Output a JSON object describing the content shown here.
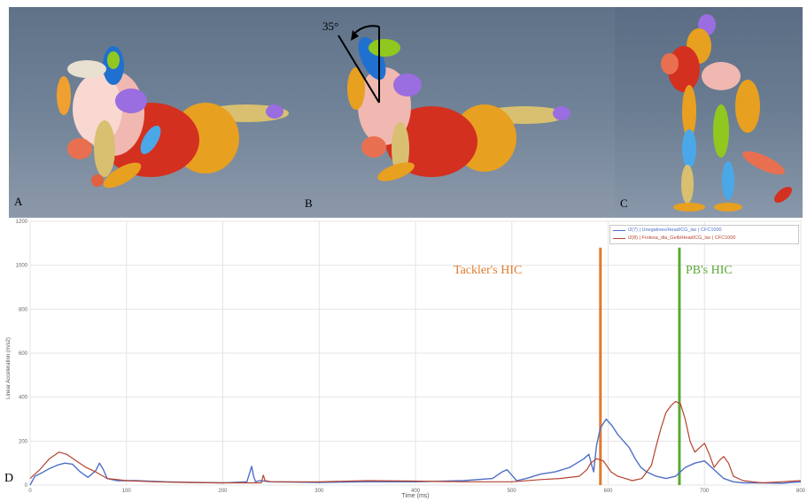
{
  "panels": {
    "a_label": "A",
    "b_label": "B",
    "c_label": "C",
    "angle_label": "35°"
  },
  "chart_data": {
    "type": "line",
    "panel_label": "D",
    "xlabel": "Time (ms)",
    "ylabel": "Linear Acceleration (m/s2)",
    "xlim": [
      0,
      800
    ],
    "ylim": [
      0,
      1200
    ],
    "x_ticks": [
      "0",
      "100",
      "200",
      "300",
      "400",
      "500",
      "600",
      "700",
      "800"
    ],
    "y_ticks": [
      "0",
      "200",
      "400",
      "600",
      "800",
      "1000",
      "1200"
    ],
    "grid": true,
    "legend_position": "top-right",
    "series": [
      {
        "name": "i2(7) | Unegatives/Head/CG_lac | CFC1000",
        "color": "#4f6fc8",
        "x": [
          0,
          5,
          12,
          20,
          28,
          36,
          44,
          52,
          60,
          68,
          72,
          76,
          80,
          90,
          110,
          140,
          170,
          200,
          225,
          230,
          232,
          234,
          238,
          250,
          300,
          350,
          400,
          450,
          480,
          490,
          495,
          500,
          505,
          515,
          530,
          545,
          560,
          575,
          580,
          583,
          585,
          588,
          592,
          598,
          604,
          610,
          616,
          622,
          628,
          634,
          640,
          650,
          660,
          670,
          680,
          690,
          700,
          710,
          720,
          730,
          740,
          760,
          780,
          800
        ],
        "y": [
          0,
          40,
          55,
          75,
          90,
          100,
          95,
          60,
          35,
          65,
          100,
          70,
          30,
          20,
          20,
          15,
          12,
          10,
          15,
          85,
          40,
          15,
          20,
          15,
          12,
          15,
          15,
          20,
          30,
          60,
          70,
          45,
          20,
          30,
          50,
          60,
          80,
          120,
          140,
          90,
          60,
          180,
          260,
          300,
          270,
          230,
          200,
          170,
          120,
          80,
          60,
          40,
          30,
          40,
          80,
          100,
          110,
          70,
          30,
          15,
          10,
          10,
          8,
          15
        ]
      },
      {
        "name": "i2(8) | Frolexa_dia_Gelb/Head/CG_lac | CFC1000",
        "color": "#b5432e",
        "x": [
          0,
          10,
          20,
          30,
          38,
          48,
          58,
          68,
          80,
          100,
          130,
          160,
          200,
          240,
          242,
          244,
          250,
          300,
          350,
          400,
          450,
          500,
          530,
          550,
          570,
          578,
          582,
          588,
          595,
          603,
          610,
          618,
          625,
          635,
          645,
          650,
          655,
          660,
          665,
          670,
          675,
          680,
          685,
          690,
          695,
          700,
          705,
          710,
          715,
          720,
          725,
          730,
          740,
          750,
          760,
          780,
          800
        ],
        "y": [
          30,
          70,
          120,
          150,
          140,
          110,
          80,
          60,
          30,
          20,
          15,
          12,
          10,
          10,
          45,
          20,
          15,
          15,
          20,
          18,
          15,
          15,
          25,
          30,
          40,
          70,
          100,
          120,
          110,
          60,
          40,
          30,
          20,
          30,
          90,
          180,
          260,
          330,
          360,
          380,
          370,
          300,
          200,
          150,
          170,
          190,
          140,
          80,
          110,
          130,
          100,
          40,
          20,
          15,
          10,
          15,
          20
        ]
      }
    ],
    "annotations": [
      {
        "text": "Tackler's HIC",
        "x": 592,
        "color": "#e07a2e"
      },
      {
        "text": "PB's HIC",
        "x": 674,
        "color": "#5aa832"
      }
    ]
  }
}
